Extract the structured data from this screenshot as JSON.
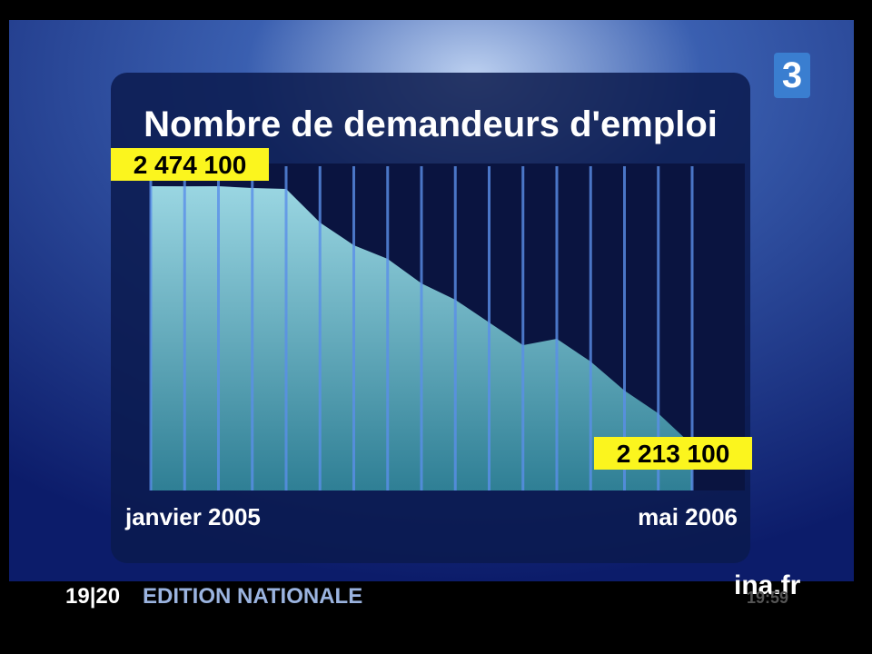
{
  "chart_data": {
    "type": "area",
    "title": "Nombre de demandeurs d'emploi",
    "categories": [
      "janvier 2005",
      null,
      null,
      null,
      null,
      null,
      null,
      null,
      null,
      null,
      null,
      null,
      null,
      null,
      null,
      null,
      "mai 2006"
    ],
    "values": [
      2474100,
      2474000,
      2474100,
      2472300,
      2471400,
      2437500,
      2414600,
      2400800,
      2376100,
      2359600,
      2336700,
      2313800,
      2320200,
      2297300,
      2268000,
      2245000,
      2213100
    ],
    "value_labels": [
      "2 474 100",
      null,
      null,
      null,
      null,
      null,
      null,
      null,
      null,
      null,
      null,
      null,
      null,
      null,
      null,
      null,
      "2 213 100"
    ],
    "color": "#8fd0dc"
  },
  "overlay": {
    "channel": "3",
    "program": "19|20",
    "edition": "EDITION NATIONALE",
    "watermark": "ina.fr",
    "clock": "19:59"
  }
}
